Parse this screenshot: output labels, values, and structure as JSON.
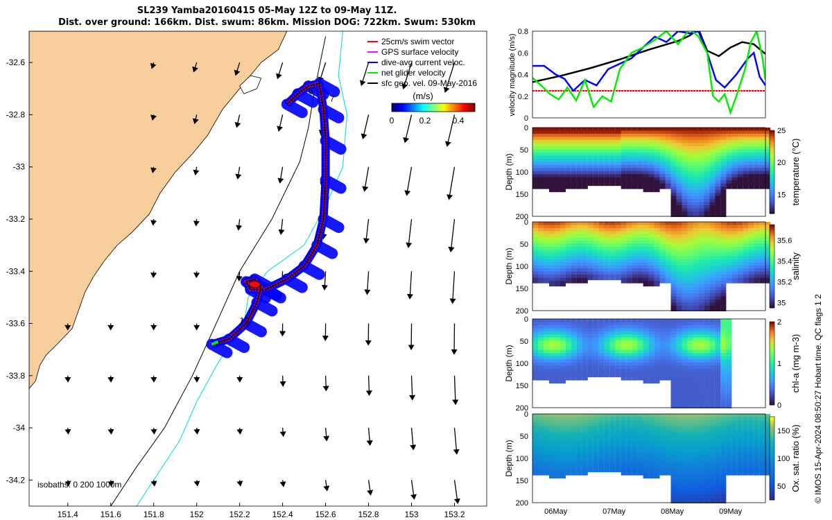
{
  "title": {
    "line1": "SL239 Yamba20160415 05-May 12Z to 09-May 11Z.",
    "line2": "Dist. over ground: 166km. Dist. swum: 86km. Mission DOG: 722km. Swum: 530km"
  },
  "chart_data": [
    {
      "type": "scatter",
      "name": "map",
      "x_ticks": [
        "151.4",
        "151.6",
        "151.8",
        "152",
        "152.2",
        "152.4",
        "152.6",
        "152.8",
        "153",
        "153.2"
      ],
      "y_ticks": [
        "-32.6",
        "-32.8",
        "-33",
        "-33.2",
        "-33.4",
        "-33.6",
        "-33.8",
        "-34",
        "-34.2"
      ],
      "xlim": [
        151.22,
        153.35
      ],
      "ylim": [
        -34.3,
        -32.48
      ],
      "legend": {
        "placement": "top-right",
        "items": [
          {
            "label": "25cm/s swim vector",
            "color": "#ff0000"
          },
          {
            "label": "GPS surface velocity",
            "color": "#ff00ff"
          },
          {
            "label": "dive-avg current veloc.",
            "color": "#0000ff"
          },
          {
            "label": "net glider velocity",
            "color": "#00ee00"
          },
          {
            "label": "sfc geo. vel. 09-May-2016",
            "color": "#000000"
          }
        ]
      },
      "colorbar": {
        "unit": "(m/s)",
        "ticks": [
          "0",
          "0.2",
          "0.4"
        ],
        "range": [
          0,
          0.5
        ]
      },
      "isobaths_label": "isobaths: 0   200   1000m",
      "track_day_labels": [
        {
          "text": "6",
          "x": 152.52,
          "y": -32.72
        },
        {
          "text": "7",
          "x": 152.62,
          "y": -32.75
        },
        {
          "text": "10",
          "x": 152.2,
          "y": -33.6
        }
      ],
      "track": [
        {
          "x": 152.07,
          "y": -33.68
        },
        {
          "x": 152.15,
          "y": -33.66
        },
        {
          "x": 152.23,
          "y": -33.6
        },
        {
          "x": 152.28,
          "y": -33.52
        },
        {
          "x": 152.3,
          "y": -33.46
        },
        {
          "x": 152.27,
          "y": -33.43
        },
        {
          "x": 152.23,
          "y": -33.44
        },
        {
          "x": 152.25,
          "y": -33.47
        },
        {
          "x": 152.32,
          "y": -33.47
        },
        {
          "x": 152.42,
          "y": -33.43
        },
        {
          "x": 152.5,
          "y": -33.38
        },
        {
          "x": 152.56,
          "y": -33.3
        },
        {
          "x": 152.59,
          "y": -33.2
        },
        {
          "x": 152.6,
          "y": -33.05
        },
        {
          "x": 152.6,
          "y": -32.9
        },
        {
          "x": 152.59,
          "y": -32.78
        },
        {
          "x": 152.57,
          "y": -32.68
        },
        {
          "x": 152.52,
          "y": -32.69
        },
        {
          "x": 152.47,
          "y": -32.72
        },
        {
          "x": 152.42,
          "y": -32.76
        }
      ]
    },
    {
      "type": "line",
      "name": "velocity",
      "ylabel": "velocity magnitude (m/s)",
      "y_ticks": [
        "0",
        "0.2",
        "0.4",
        "0.6",
        "0.8"
      ],
      "ylim": [
        0,
        0.8
      ],
      "xlim": [
        0,
        4
      ],
      "series": [
        {
          "color": "#000000",
          "x": [
            0,
            0.5,
            1,
            1.5,
            2,
            2.5,
            2.7,
            2.85,
            3,
            3.2,
            3.4,
            3.6,
            3.8,
            4
          ],
          "y": [
            0.33,
            0.39,
            0.46,
            0.54,
            0.63,
            0.71,
            0.76,
            0.82,
            0.62,
            0.57,
            0.65,
            0.7,
            0.68,
            0.59
          ]
        },
        {
          "color": "#0000ff",
          "x": [
            0,
            0.2,
            0.4,
            0.55,
            0.7,
            0.9,
            1.1,
            1.3,
            1.5,
            1.7,
            1.9,
            2.1,
            2.3,
            2.5,
            2.7,
            2.85,
            3.0,
            3.15,
            3.3,
            3.5,
            3.7,
            3.8,
            3.9,
            4
          ],
          "y": [
            0.48,
            0.48,
            0.4,
            0.36,
            0.25,
            0.35,
            0.3,
            0.45,
            0.5,
            0.55,
            0.65,
            0.75,
            0.7,
            0.8,
            0.78,
            0.8,
            0.6,
            0.35,
            0.28,
            0.4,
            0.55,
            0.6,
            0.38,
            0.3
          ]
        },
        {
          "color": "#00ee00",
          "x": [
            0,
            0.15,
            0.3,
            0.45,
            0.6,
            0.75,
            0.9,
            1.05,
            1.2,
            1.35,
            1.5,
            1.7,
            1.9,
            2.1,
            2.3,
            2.5,
            2.7,
            2.85,
            3.0,
            3.1,
            3.2,
            3.3,
            3.4,
            3.5,
            3.65,
            3.75,
            3.85,
            3.95,
            4
          ],
          "y": [
            0.37,
            0.3,
            0.22,
            0.17,
            0.28,
            0.16,
            0.35,
            0.1,
            0.2,
            0.15,
            0.45,
            0.6,
            0.65,
            0.72,
            0.8,
            0.68,
            0.82,
            0.75,
            0.6,
            0.2,
            0.15,
            0.22,
            0.05,
            0.2,
            0.45,
            0.7,
            0.8,
            0.55,
            0.35
          ]
        }
      ],
      "reference_line": {
        "y": 0.25,
        "color": "#ff0000"
      }
    },
    {
      "type": "heatmap",
      "name": "temperature",
      "ylabel": "Depth (m)",
      "colorbar_label": "temperature (°C)",
      "colorbar_ticks": [
        "15",
        "20",
        "25"
      ],
      "clim": [
        12,
        25
      ],
      "y_ticks": [
        "0",
        "50",
        "100",
        "150",
        "200"
      ],
      "profile": {
        "x": [
          0,
          0.5,
          1,
          1.5,
          2,
          2.3,
          2.6,
          2.9,
          3.2,
          3.6,
          4
        ],
        "max_depth": [
          130,
          130,
          125,
          130,
          128,
          125,
          190,
          190,
          130,
          130,
          130
        ],
        "warm_depth": [
          20,
          25,
          30,
          30,
          15,
          20,
          40,
          90,
          45,
          40,
          45
        ]
      }
    },
    {
      "type": "heatmap",
      "name": "salinity",
      "ylabel": "Depth (m)",
      "colorbar_label": "salinity",
      "colorbar_ticks": [
        "35",
        "35.2",
        "35.4",
        "35.6"
      ],
      "clim": [
        34.95,
        35.75
      ],
      "y_ticks": [
        "0",
        "50",
        "100",
        "150",
        "200"
      ]
    },
    {
      "type": "heatmap",
      "name": "chl-a",
      "ylabel": "Depth (m)",
      "colorbar_label": "chl-a (mg m-3)",
      "colorbar_ticks": [
        "0",
        "1",
        "2"
      ],
      "clim": [
        0,
        2
      ],
      "y_ticks": [
        "0",
        "50",
        "100",
        "150",
        "200"
      ]
    },
    {
      "type": "heatmap",
      "name": "oxygen",
      "ylabel": "Depth (m)",
      "colorbar_label": "Ox. sat. ratio (%)",
      "colorbar_ticks": [
        "50",
        "100",
        "150"
      ],
      "clim": [
        25,
        175
      ],
      "y_ticks": [
        "0",
        "50",
        "100",
        "150",
        "200"
      ],
      "x_ticks": [
        "06May",
        "07May",
        "08May",
        "09May"
      ]
    }
  ],
  "footer": "© IMOS 15-Apr-2024 08:50:27 Hobart time. QC flags 1  2"
}
